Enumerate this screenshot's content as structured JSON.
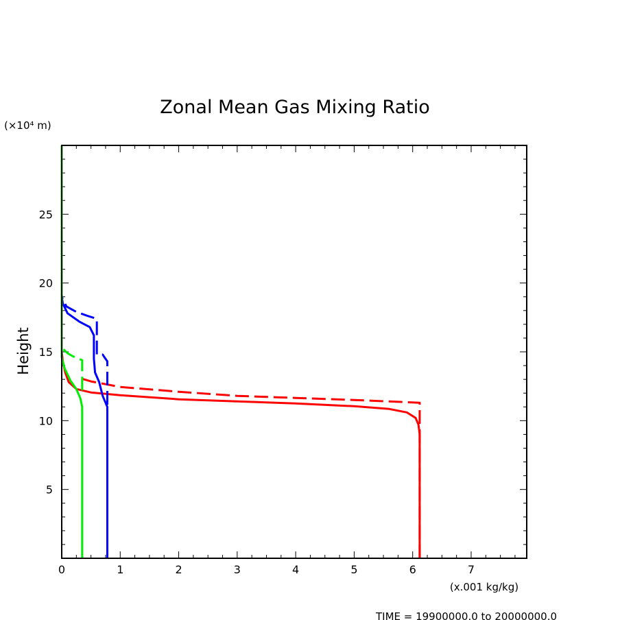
{
  "chart_data": {
    "type": "line",
    "title": "Zonal Mean Gas Mixing Ratio",
    "ylabel": "Height",
    "yunit": "(×10⁴ m)",
    "xunit": "(x.001 kg/kg)",
    "footer": "TIME = 19900000.0 to 20000000.0",
    "xlim": [
      0,
      7.95
    ],
    "ylim": [
      0,
      30
    ],
    "xticks": [
      0,
      1,
      2,
      3,
      4,
      5,
      6,
      7
    ],
    "yticks": [
      5,
      10,
      15,
      20,
      25
    ],
    "grid": false,
    "series": [
      {
        "color": "#ff0000",
        "dash": false,
        "points": [
          [
            6.12,
            0
          ],
          [
            6.12,
            5
          ],
          [
            6.12,
            9
          ],
          [
            6.1,
            9.7
          ],
          [
            6.05,
            10.2
          ],
          [
            5.9,
            10.6
          ],
          [
            5.6,
            10.85
          ],
          [
            5,
            11.05
          ],
          [
            4,
            11.25
          ],
          [
            3,
            11.4
          ],
          [
            2,
            11.55
          ],
          [
            1,
            11.85
          ],
          [
            0.5,
            12.05
          ],
          [
            0.25,
            12.3
          ],
          [
            0.12,
            12.8
          ],
          [
            0.06,
            13.5
          ],
          [
            0.02,
            14.3
          ],
          [
            0,
            15
          ]
        ]
      },
      {
        "color": "#ff0000",
        "dash": true,
        "points": [
          [
            6.12,
            0
          ],
          [
            6.12,
            11.3
          ],
          [
            5,
            11.5
          ],
          [
            4,
            11.65
          ],
          [
            3,
            11.8
          ],
          [
            2,
            12.1
          ],
          [
            1,
            12.45
          ],
          [
            0.5,
            12.85
          ],
          [
            0.3,
            13.1
          ]
        ]
      },
      {
        "color": "#0000ff",
        "dash": false,
        "points": [
          [
            0.78,
            0
          ],
          [
            0.78,
            11
          ],
          [
            0.7,
            11.8
          ],
          [
            0.64,
            12.8
          ],
          [
            0.57,
            13.5
          ],
          [
            0.55,
            14.5
          ],
          [
            0.55,
            16.2
          ],
          [
            0.48,
            16.8
          ],
          [
            0.3,
            17.2
          ],
          [
            0.1,
            17.8
          ],
          [
            0.02,
            18.5
          ],
          [
            0,
            19
          ]
        ]
      },
      {
        "color": "#0000ff",
        "dash": true,
        "points": [
          [
            0.78,
            0
          ],
          [
            0.78,
            14.3
          ],
          [
            0.7,
            14.8
          ],
          [
            0.6,
            14.8
          ],
          [
            0.6,
            17.4
          ],
          [
            0.45,
            17.6
          ],
          [
            0.25,
            17.9
          ],
          [
            0.08,
            18.3
          ],
          [
            0.01,
            18.9
          ],
          [
            0,
            19.1
          ]
        ]
      },
      {
        "color": "#00ee00",
        "dash": false,
        "points": [
          [
            0.35,
            0
          ],
          [
            0.35,
            11
          ],
          [
            0.32,
            11.6
          ],
          [
            0.25,
            12.3
          ],
          [
            0.15,
            12.9
          ],
          [
            0.05,
            13.8
          ],
          [
            0,
            14.6
          ],
          [
            0,
            30
          ]
        ]
      },
      {
        "color": "#00ee00",
        "dash": true,
        "points": [
          [
            0.35,
            12.2
          ],
          [
            0.35,
            14.4
          ],
          [
            0.28,
            14.5
          ],
          [
            0.18,
            14.7
          ],
          [
            0.1,
            14.9
          ],
          [
            0.05,
            15.1
          ],
          [
            0,
            15.3
          ]
        ]
      }
    ]
  }
}
